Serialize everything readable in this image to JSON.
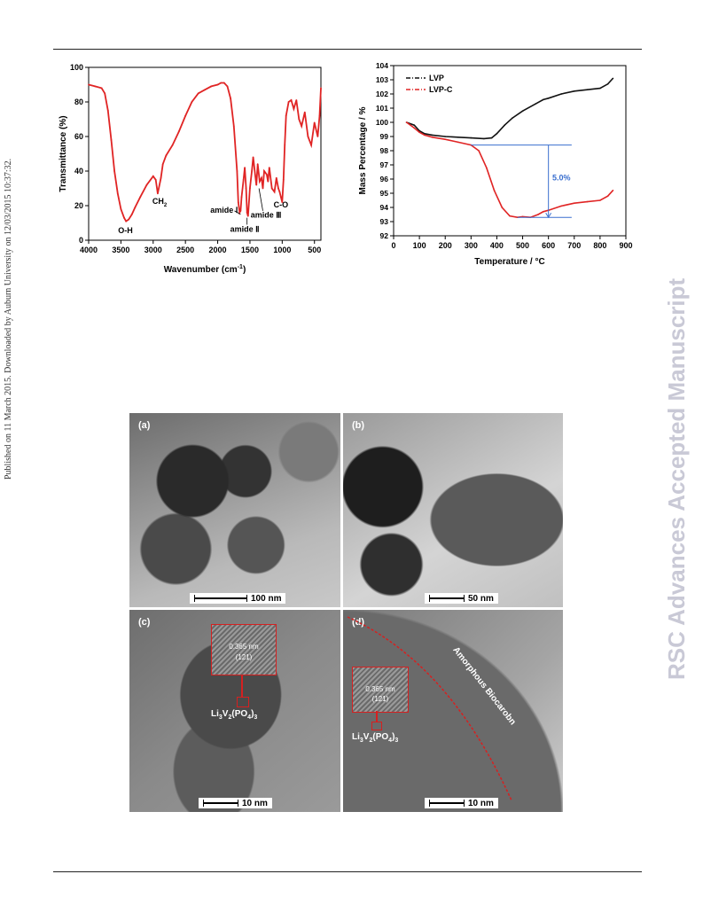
{
  "side_note": "Published on 11 March 2015. Downloaded by Auburn University on 12/03/2015 10:37:32.",
  "watermark": "RSC Advances Accepted Manuscript",
  "chart_data": [
    {
      "type": "line",
      "xlabel": "Wavenumber (cm",
      "xlabel_sup": "-1",
      "xlabel_close": ")",
      "ylabel": "Transmittance (%)",
      "xlim": [
        4000,
        400
      ],
      "ylim": [
        0,
        100
      ],
      "x_ticks": [
        4000,
        3500,
        3000,
        2500,
        2000,
        1500,
        1000,
        500
      ],
      "y_ticks": [
        0,
        20,
        40,
        60,
        80,
        100
      ],
      "annotations": {
        "oh": "O-H",
        "ch": "CH",
        "ch_sub": "2",
        "amide1": "amide Ⅰ",
        "amide2": "amide Ⅱ",
        "amide3": "amide Ⅲ",
        "co": "C-O"
      },
      "series": [
        {
          "color": "#e02424",
          "x": [
            4000,
            3900,
            3800,
            3750,
            3700,
            3650,
            3600,
            3550,
            3500,
            3450,
            3420,
            3380,
            3330,
            3280,
            3200,
            3100,
            3000,
            2960,
            2930,
            2880,
            2850,
            2800,
            2700,
            2600,
            2500,
            2400,
            2300,
            2200,
            2100,
            2000,
            1950,
            1900,
            1850,
            1800,
            1750,
            1700,
            1680,
            1660,
            1645,
            1630,
            1600,
            1580,
            1560,
            1545,
            1530,
            1500,
            1470,
            1450,
            1420,
            1400,
            1380,
            1350,
            1320,
            1300,
            1280,
            1240,
            1220,
            1200,
            1160,
            1120,
            1090,
            1060,
            1040,
            1020,
            1000,
            980,
            960,
            940,
            900,
            860,
            820,
            780,
            740,
            700,
            650,
            600,
            550,
            500,
            450,
            420,
            400
          ],
          "y": [
            90,
            89,
            88,
            85,
            75,
            58,
            40,
            27,
            18,
            13,
            11,
            12,
            15,
            19,
            25,
            32,
            37,
            35,
            27,
            36,
            44,
            49,
            55,
            63,
            72,
            80,
            85,
            87,
            89,
            90,
            91,
            91,
            89,
            82,
            66,
            40,
            22,
            16,
            17,
            25,
            35,
            42,
            30,
            16,
            14,
            30,
            40,
            48,
            38,
            32,
            44,
            34,
            36,
            30,
            40,
            38,
            34,
            42,
            30,
            28,
            36,
            30,
            28,
            25,
            22,
            35,
            55,
            72,
            80,
            81,
            76,
            81,
            70,
            66,
            74,
            60,
            55,
            68,
            60,
            72,
            88
          ]
        }
      ]
    },
    {
      "type": "line",
      "xlabel": "Temperature / °C",
      "ylabel": "Mass Percentage / %",
      "xlim": [
        0,
        900
      ],
      "ylim": [
        92,
        104
      ],
      "x_ticks": [
        0,
        100,
        200,
        300,
        400,
        500,
        600,
        700,
        800,
        900
      ],
      "y_ticks": [
        92,
        93,
        94,
        95,
        96,
        97,
        98,
        99,
        100,
        101,
        102,
        103,
        104
      ],
      "legend_position": "top-left",
      "annotation": "5.0%",
      "series": [
        {
          "name": "LVP",
          "color": "#111111",
          "x": [
            50,
            80,
            100,
            120,
            150,
            200,
            250,
            300,
            350,
            380,
            400,
            430,
            460,
            500,
            550,
            580,
            600,
            650,
            700,
            750,
            800,
            830,
            850
          ],
          "y": [
            100.0,
            99.8,
            99.4,
            99.2,
            99.1,
            99.0,
            98.95,
            98.9,
            98.85,
            98.9,
            99.2,
            99.8,
            100.3,
            100.8,
            101.3,
            101.6,
            101.7,
            102.0,
            102.2,
            102.3,
            102.4,
            102.7,
            103.1
          ]
        },
        {
          "name": "LVP-C",
          "color": "#e02424",
          "x": [
            50,
            80,
            100,
            120,
            150,
            200,
            250,
            300,
            330,
            360,
            390,
            420,
            450,
            480,
            500,
            530,
            560,
            580,
            600,
            650,
            700,
            750,
            800,
            830,
            850
          ],
          "y": [
            100.0,
            99.6,
            99.3,
            99.1,
            98.95,
            98.8,
            98.6,
            98.4,
            98.0,
            96.8,
            95.2,
            94.0,
            93.4,
            93.3,
            93.35,
            93.3,
            93.5,
            93.7,
            93.8,
            94.1,
            94.3,
            94.4,
            94.5,
            94.8,
            95.2
          ]
        }
      ]
    }
  ],
  "tem": {
    "a": {
      "label": "(a)",
      "scale": "100 nm"
    },
    "b": {
      "label": "(b)",
      "scale": "50 nm"
    },
    "c": {
      "label": "(c)",
      "scale": "10 nm",
      "spacing": "0.365 nm",
      "plane": "(121)",
      "formula_pre": "Li",
      "formula_sub1": "3",
      "formula_mid": "V",
      "formula_sub2": "2",
      "formula_post": "(PO",
      "formula_sub3": "4",
      "formula_end": ")",
      "formula_sub4": "3"
    },
    "d": {
      "label": "(d)",
      "scale": "10 nm",
      "spacing": "0.365 nm",
      "plane": "(121)",
      "amorphous": "Amorphous Biocarobn",
      "formula_pre": "Li",
      "formula_sub1": "3",
      "formula_mid": "V",
      "formula_sub2": "2",
      "formula_post": "(PO",
      "formula_sub3": "4",
      "formula_end": ")",
      "formula_sub4": "3"
    }
  }
}
